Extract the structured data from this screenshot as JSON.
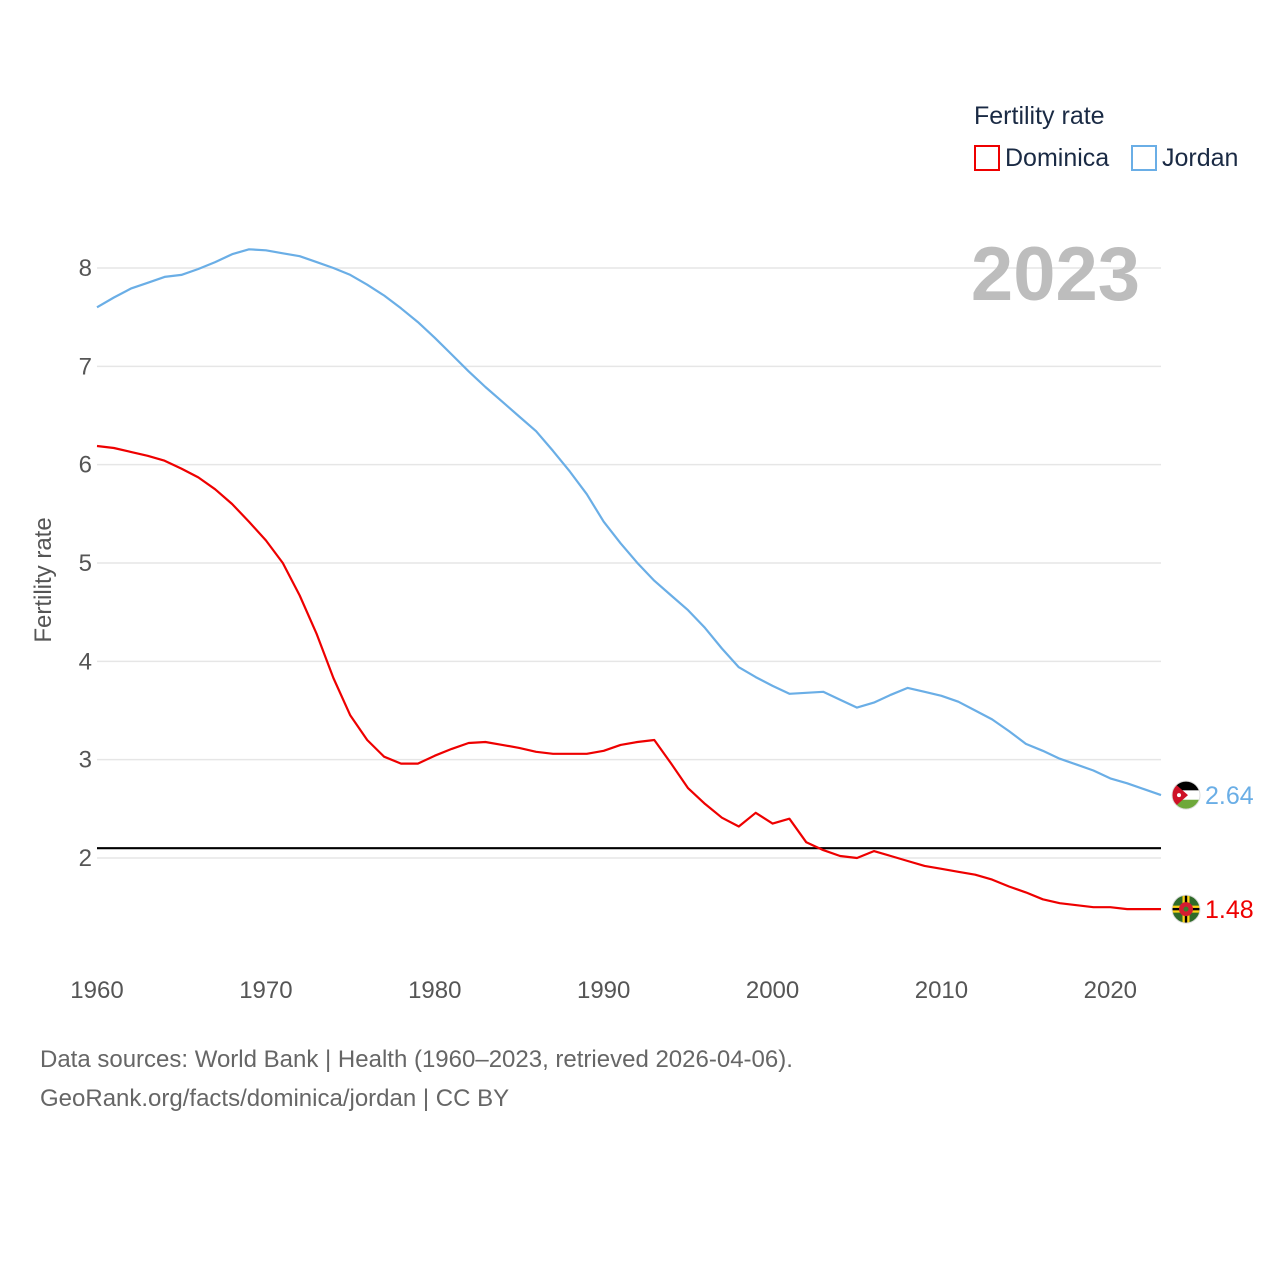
{
  "chart_data": {
    "type": "line",
    "year_label": "2023",
    "ylabel": "Fertility rate",
    "xlabel": "",
    "xlim": [
      1960,
      2023
    ],
    "ylim": [
      1,
      8.5
    ],
    "x_ticks": [
      1960,
      1970,
      1980,
      1990,
      2000,
      2010,
      2020
    ],
    "y_ticks": [
      2,
      3,
      4,
      5,
      6,
      7,
      8
    ],
    "reference_line": 2.1,
    "grid": true,
    "legend": {
      "title": "Fertility rate",
      "placement": "top-right",
      "entries": [
        "Dominica",
        "Jordan"
      ]
    },
    "x": [
      1960,
      1961,
      1962,
      1963,
      1964,
      1965,
      1966,
      1967,
      1968,
      1969,
      1970,
      1971,
      1972,
      1973,
      1974,
      1975,
      1976,
      1977,
      1978,
      1979,
      1980,
      1981,
      1982,
      1983,
      1984,
      1985,
      1986,
      1987,
      1988,
      1989,
      1990,
      1991,
      1992,
      1993,
      1994,
      1995,
      1996,
      1997,
      1998,
      1999,
      2000,
      2001,
      2002,
      2003,
      2004,
      2005,
      2006,
      2007,
      2008,
      2009,
      2010,
      2011,
      2012,
      2013,
      2014,
      2015,
      2016,
      2017,
      2018,
      2019,
      2020,
      2021,
      2022,
      2023
    ],
    "series": [
      {
        "name": "Dominica",
        "color": "#ee0000",
        "end_label": "1.48",
        "values": [
          6.19,
          6.17,
          6.13,
          6.09,
          6.04,
          5.96,
          5.87,
          5.75,
          5.6,
          5.42,
          5.23,
          5.0,
          4.67,
          4.28,
          3.83,
          3.45,
          3.2,
          3.03,
          2.96,
          2.96,
          3.04,
          3.11,
          3.17,
          3.18,
          3.15,
          3.12,
          3.08,
          3.06,
          3.06,
          3.06,
          3.09,
          3.15,
          3.18,
          3.2,
          2.96,
          2.71,
          2.55,
          2.41,
          2.32,
          2.46,
          2.35,
          2.4,
          2.16,
          2.08,
          2.02,
          2.0,
          2.07,
          2.02,
          1.97,
          1.92,
          1.89,
          1.86,
          1.83,
          1.78,
          1.71,
          1.65,
          1.58,
          1.54,
          1.52,
          1.5,
          1.5,
          1.48,
          1.48,
          1.48
        ]
      },
      {
        "name": "Jordan",
        "color": "#6aaee6",
        "end_label": "2.64",
        "values": [
          7.6,
          7.7,
          7.79,
          7.85,
          7.91,
          7.93,
          7.99,
          8.06,
          8.14,
          8.19,
          8.18,
          8.15,
          8.12,
          8.06,
          8.0,
          7.93,
          7.83,
          7.72,
          7.59,
          7.45,
          7.29,
          7.12,
          6.95,
          6.79,
          6.64,
          6.49,
          6.34,
          6.14,
          5.93,
          5.7,
          5.42,
          5.2,
          5.0,
          4.82,
          4.67,
          4.52,
          4.34,
          4.13,
          3.94,
          3.84,
          3.75,
          3.67,
          3.68,
          3.69,
          3.61,
          3.53,
          3.58,
          3.66,
          3.73,
          3.69,
          3.65,
          3.59,
          3.5,
          3.41,
          3.29,
          3.16,
          3.09,
          3.01,
          2.95,
          2.89,
          2.81,
          2.76,
          2.7,
          2.64
        ]
      }
    ]
  },
  "footer": {
    "source": "Data sources: World Bank | Health (1960–2023, retrieved 2026-04-06).",
    "credit": "GeoRank.org/facts/dominica/jordan | CC BY"
  }
}
